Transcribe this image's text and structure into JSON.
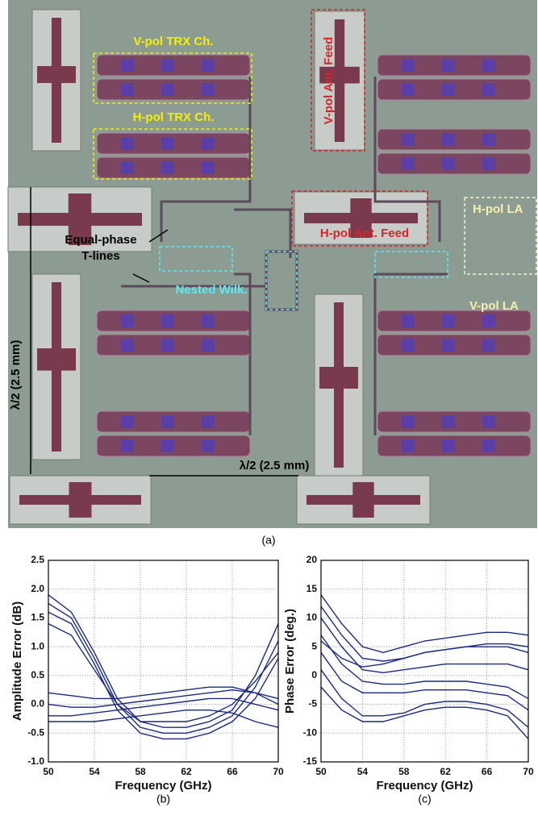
{
  "photo": {
    "labels": {
      "v_trx": "V-pol TRX Ch.",
      "h_trx": "H-pol TRX Ch.",
      "v_feed": "V-pol Ant. Feed",
      "h_feed": "H-pol Ant. Feed",
      "h_la": "H-pol LA",
      "v_la": "V-pol LA",
      "tlines_1": "Equal-phase",
      "tlines_2": "T-lines",
      "wilk": "Nested Wilk.",
      "lambda_v": "λ/2 (2.5 mm)",
      "lambda_h": "λ/2 (2.5 mm)"
    },
    "caption": "(a)"
  },
  "chart_data": [
    {
      "type": "line",
      "ylabel": "Amplitude Error (dB)",
      "xlabel": "Frequency (GHz)",
      "caption": "(b)",
      "x": [
        50,
        52,
        54,
        56,
        58,
        60,
        62,
        64,
        66,
        68,
        70
      ],
      "series": [
        {
          "color": "#1c2a7c",
          "values": [
            1.9,
            1.6,
            0.9,
            0.1,
            -0.3,
            -0.4,
            -0.4,
            -0.3,
            -0.1,
            0.5,
            1.4
          ]
        },
        {
          "color": "#1c2a7c",
          "values": [
            1.75,
            1.5,
            0.8,
            0.0,
            -0.4,
            -0.5,
            -0.5,
            -0.4,
            -0.2,
            0.3,
            1.1
          ]
        },
        {
          "color": "#1c2a7c",
          "values": [
            1.6,
            1.4,
            0.7,
            -0.1,
            -0.5,
            -0.6,
            -0.6,
            -0.5,
            -0.3,
            0.1,
            0.8
          ]
        },
        {
          "color": "#1c2a7c",
          "values": [
            1.4,
            1.2,
            0.6,
            0.0,
            -0.3,
            -0.3,
            -0.3,
            -0.2,
            0.0,
            0.4,
            0.9
          ]
        },
        {
          "color": "#1c2a7c",
          "values": [
            0.2,
            0.15,
            0.1,
            0.1,
            0.15,
            0.2,
            0.25,
            0.3,
            0.3,
            0.2,
            0.1
          ]
        },
        {
          "color": "#1c2a7c",
          "values": [
            0.0,
            -0.05,
            -0.05,
            0.0,
            0.05,
            0.1,
            0.15,
            0.2,
            0.25,
            0.2,
            0.0
          ]
        },
        {
          "color": "#1c2a7c",
          "values": [
            -0.2,
            -0.2,
            -0.15,
            -0.1,
            -0.05,
            0.0,
            0.05,
            0.1,
            0.1,
            0.0,
            -0.1
          ]
        },
        {
          "color": "#1c2a7c",
          "values": [
            -0.3,
            -0.3,
            -0.3,
            -0.25,
            -0.2,
            -0.15,
            -0.1,
            -0.1,
            -0.15,
            -0.3,
            -0.4
          ]
        }
      ],
      "xlim": [
        50,
        70
      ],
      "ylim": [
        -1,
        2.5
      ],
      "xticks": [
        50,
        54,
        58,
        62,
        66,
        70
      ],
      "yticks": [
        {
          "value": -1,
          "label": "-1.0"
        },
        -0.5,
        {
          "value": 0,
          "label": "0.0"
        },
        0.5,
        {
          "value": 1,
          "label": "1.0"
        },
        1.5,
        {
          "value": 2,
          "label": "2.0"
        },
        2.5
      ],
      "grid": true
    },
    {
      "type": "line",
      "ylabel": "Phase Error (deg.)",
      "xlabel": "Frequency (GHz)",
      "caption": "(c)",
      "x": [
        50,
        52,
        54,
        56,
        58,
        60,
        62,
        64,
        66,
        68,
        70
      ],
      "series": [
        {
          "color": "#1c2a7c",
          "values": [
            14,
            9,
            5,
            4,
            5,
            6,
            6.5,
            7,
            7.5,
            7.5,
            7
          ]
        },
        {
          "color": "#1c2a7c",
          "values": [
            12,
            7,
            3,
            2.5,
            3,
            4,
            4.5,
            5,
            5,
            5,
            4
          ]
        },
        {
          "color": "#1c2a7c",
          "values": [
            10,
            5,
            1,
            0.5,
            1,
            1.5,
            2,
            2,
            2,
            2,
            1
          ]
        },
        {
          "color": "#1c2a7c",
          "values": [
            7,
            2,
            -1,
            -1.5,
            -1.5,
            -1,
            -1,
            -1,
            -1.5,
            -2,
            -4
          ]
        },
        {
          "color": "#1c2a7c",
          "values": [
            4,
            -1,
            -3,
            -3,
            -3,
            -2.5,
            -2.5,
            -2.5,
            -3,
            -3.5,
            -6
          ]
        },
        {
          "color": "#1c2a7c",
          "values": [
            1,
            -4,
            -7,
            -7,
            -6.5,
            -5,
            -4.5,
            -4.5,
            -5,
            -6,
            -9
          ]
        },
        {
          "color": "#1c2a7c",
          "values": [
            -2,
            -6,
            -8,
            -8,
            -7,
            -6,
            -5.5,
            -5.5,
            -6,
            -7,
            -11
          ]
        },
        {
          "color": "#1c2a7c",
          "values": [
            6,
            3,
            1.5,
            2,
            3,
            4,
            4.5,
            5,
            5.5,
            5.5,
            5
          ]
        }
      ],
      "xlim": [
        50,
        70
      ],
      "ylim": [
        -15,
        20
      ],
      "xticks": [
        50,
        54,
        58,
        62,
        66,
        70
      ],
      "yticks": [
        -15,
        -10,
        -5,
        0,
        5,
        10,
        15,
        20
      ],
      "grid": true
    }
  ]
}
